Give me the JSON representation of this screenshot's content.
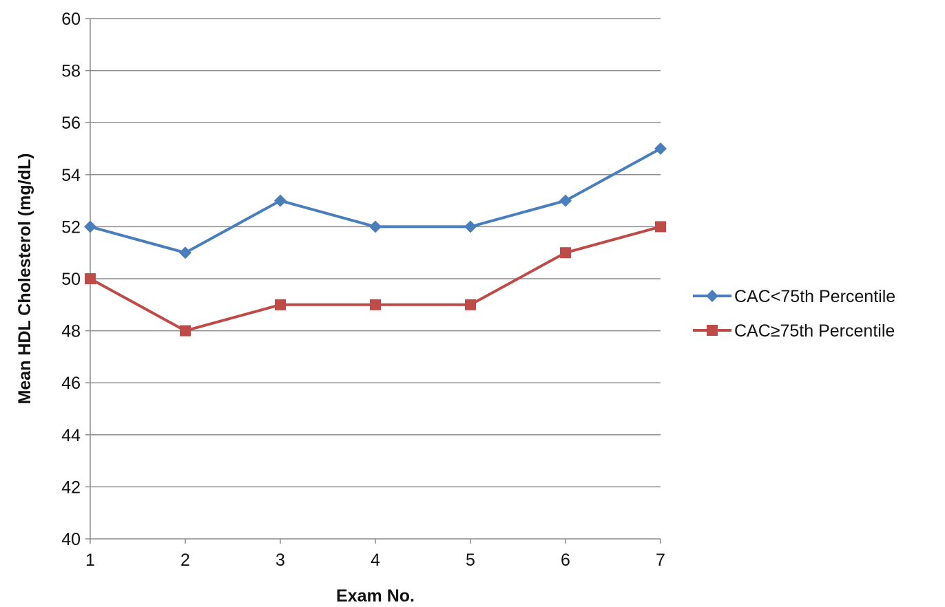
{
  "chart_data": {
    "type": "line",
    "title": "",
    "xlabel": "Exam No.",
    "ylabel": "Mean HDL Cholesterol (mg/dL)",
    "x": [
      1,
      2,
      3,
      4,
      5,
      6,
      7
    ],
    "x_tick_labels": [
      "1",
      "2",
      "3",
      "4",
      "5",
      "6",
      "7"
    ],
    "ylim": [
      40,
      60
    ],
    "y_ticks": [
      40,
      42,
      44,
      46,
      48,
      50,
      52,
      54,
      56,
      58,
      60
    ],
    "grid": "horizontal",
    "legend_position": "right",
    "series": [
      {
        "name": "CAC<75th Percentile",
        "values": [
          52,
          51,
          53,
          52,
          52,
          53,
          55
        ],
        "color": "#4a7ebb",
        "marker": "diamond"
      },
      {
        "name": "CAC≥75th Percentile",
        "values": [
          50,
          48,
          49,
          49,
          49,
          51,
          52
        ],
        "color": "#be4b48",
        "marker": "square"
      }
    ]
  }
}
